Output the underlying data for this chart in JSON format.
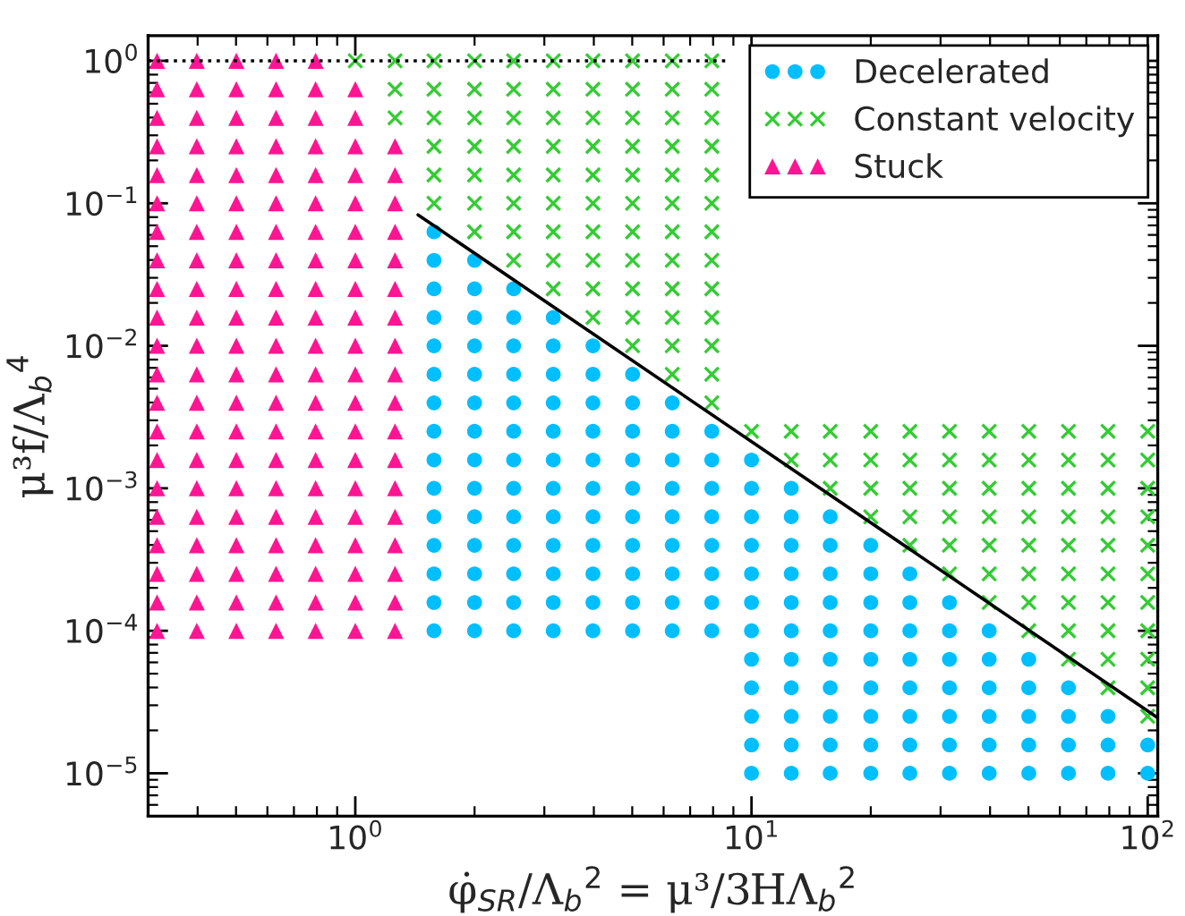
{
  "chart_data": {
    "type": "scatter",
    "xlabel": "φ̇$_{SR}$/Λ$_{b}$$^{2}$ = μ³/3HΛ$_{b}$$^{2}$",
    "ylabel": "μ³f/Λ$_{b}$$^{4}$",
    "log": "xy",
    "grid": false,
    "legend": "top right",
    "xlim": [
      0.3,
      106
    ],
    "ylim": [
      5e-06,
      1.5
    ],
    "xticks": [
      {
        "value": 1,
        "label": "10$^{0}$"
      },
      {
        "value": 10,
        "label": "10$^{1}$"
      },
      {
        "value": 100,
        "label": "10$^{2}$"
      }
    ],
    "yticks": [
      {
        "value": 1e-05,
        "label": "10$^{−5}$"
      },
      {
        "value": 0.0001,
        "label": "10$^{−4}$"
      },
      {
        "value": 0.001,
        "label": "10$^{−3}$"
      },
      {
        "value": 0.01,
        "label": "10$^{−2}$"
      },
      {
        "value": 0.1,
        "label": "10$^{−1}$"
      },
      {
        "value": 1,
        "label": "10$^{0}$"
      }
    ],
    "series": [
      {
        "name": "Decelerated",
        "marker": "circle",
        "color": "#00bfff",
        "x": [
          1.58,
          1.58,
          1.58,
          1.58,
          1.58,
          1.58,
          1.58,
          1.58,
          1.58,
          1.58,
          1.58,
          1.58,
          1.58,
          1.58,
          1.58,
          2,
          2,
          2,
          2,
          2,
          2,
          2,
          2,
          2,
          2,
          2,
          2,
          2,
          2,
          2.51,
          2.51,
          2.51,
          2.51,
          2.51,
          2.51,
          2.51,
          2.51,
          2.51,
          2.51,
          2.51,
          2.51,
          2.51,
          3.16,
          3.16,
          3.16,
          3.16,
          3.16,
          3.16,
          3.16,
          3.16,
          3.16,
          3.16,
          3.16,
          3.16,
          3.98,
          3.98,
          3.98,
          3.98,
          3.98,
          3.98,
          3.98,
          3.98,
          3.98,
          3.98,
          3.98,
          5.01,
          5.01,
          5.01,
          5.01,
          5.01,
          5.01,
          5.01,
          5.01,
          5.01,
          5.01,
          6.31,
          6.31,
          6.31,
          6.31,
          6.31,
          6.31,
          6.31,
          6.31,
          6.31,
          7.94,
          7.94,
          7.94,
          7.94,
          7.94,
          7.94,
          7.94,
          7.94,
          10,
          10,
          10,
          10,
          10,
          10,
          10,
          10,
          10,
          10,
          10,
          10,
          12.6,
          12.6,
          12.6,
          12.6,
          12.6,
          12.6,
          12.6,
          12.6,
          12.6,
          12.6,
          12.6,
          15.8,
          15.8,
          15.8,
          15.8,
          15.8,
          15.8,
          15.8,
          15.8,
          15.8,
          15.8,
          20,
          20,
          20,
          20,
          20,
          20,
          20,
          20,
          20,
          25.1,
          25.1,
          25.1,
          25.1,
          25.1,
          25.1,
          25.1,
          25.1,
          31.6,
          31.6,
          31.6,
          31.6,
          31.6,
          31.6,
          31.6,
          39.8,
          39.8,
          39.8,
          39.8,
          39.8,
          39.8,
          50.1,
          50.1,
          50.1,
          50.1,
          50.1,
          63.1,
          63.1,
          63.1,
          63.1,
          79.4,
          79.4,
          79.4,
          100,
          100
        ],
        "values": [
          0.0631,
          0.0398,
          0.0251,
          0.0158,
          0.01,
          0.00631,
          0.00398,
          0.00251,
          0.00158,
          0.001,
          0.000631,
          0.000398,
          0.000251,
          0.000158,
          0.0001,
          0.0398,
          0.0251,
          0.0158,
          0.01,
          0.00631,
          0.00398,
          0.00251,
          0.00158,
          0.001,
          0.000631,
          0.000398,
          0.000251,
          0.000158,
          0.0001,
          0.0251,
          0.0158,
          0.01,
          0.00631,
          0.00398,
          0.00251,
          0.00158,
          0.001,
          0.000631,
          0.000398,
          0.000251,
          0.000158,
          0.0001,
          0.0158,
          0.01,
          0.00631,
          0.00398,
          0.00251,
          0.00158,
          0.001,
          0.000631,
          0.000398,
          0.000251,
          0.000158,
          0.0001,
          0.01,
          0.00631,
          0.00398,
          0.00251,
          0.00158,
          0.001,
          0.000631,
          0.000398,
          0.000251,
          0.000158,
          0.0001,
          0.00631,
          0.00398,
          0.00251,
          0.00158,
          0.001,
          0.000631,
          0.000398,
          0.000251,
          0.000158,
          0.0001,
          0.00398,
          0.00251,
          0.00158,
          0.001,
          0.000631,
          0.000398,
          0.000251,
          0.000158,
          0.0001,
          0.00251,
          0.00158,
          0.001,
          0.000631,
          0.000398,
          0.000251,
          0.000158,
          0.0001,
          0.00158,
          0.001,
          0.000631,
          0.000398,
          0.000251,
          0.000158,
          0.0001,
          6.31e-05,
          3.98e-05,
          2.51e-05,
          1.58e-05,
          1e-05,
          0.001,
          0.000631,
          0.000398,
          0.000251,
          0.000158,
          0.0001,
          6.31e-05,
          3.98e-05,
          2.51e-05,
          1.58e-05,
          1e-05,
          0.000631,
          0.000398,
          0.000251,
          0.000158,
          0.0001,
          6.31e-05,
          3.98e-05,
          2.51e-05,
          1.58e-05,
          1e-05,
          0.000398,
          0.000251,
          0.000158,
          0.0001,
          6.31e-05,
          3.98e-05,
          2.51e-05,
          1.58e-05,
          1e-05,
          0.000251,
          0.000158,
          0.0001,
          6.31e-05,
          3.98e-05,
          2.51e-05,
          1.58e-05,
          1e-05,
          0.000158,
          0.0001,
          6.31e-05,
          3.98e-05,
          2.51e-05,
          1.58e-05,
          1e-05,
          0.0001,
          6.31e-05,
          3.98e-05,
          2.51e-05,
          1.58e-05,
          1e-05,
          6.31e-05,
          3.98e-05,
          2.51e-05,
          1.58e-05,
          1e-05,
          3.98e-05,
          2.51e-05,
          1.58e-05,
          1e-05,
          2.51e-05,
          1.58e-05,
          1e-05,
          1.58e-05,
          1e-05
        ]
      },
      {
        "name": "Constant velocity",
        "marker": "cross",
        "color": "#33cc33",
        "x": [
          1,
          1.26,
          1.26,
          1.26,
          1.58,
          1.58,
          1.58,
          1.58,
          1.58,
          1.58,
          2,
          2,
          2,
          2,
          2,
          2,
          2,
          2.51,
          2.51,
          2.51,
          2.51,
          2.51,
          2.51,
          2.51,
          2.51,
          3.16,
          3.16,
          3.16,
          3.16,
          3.16,
          3.16,
          3.16,
          3.16,
          3.16,
          3.98,
          3.98,
          3.98,
          3.98,
          3.98,
          3.98,
          3.98,
          3.98,
          3.98,
          3.98,
          5.01,
          5.01,
          5.01,
          5.01,
          5.01,
          5.01,
          5.01,
          5.01,
          5.01,
          5.01,
          5.01,
          6.31,
          6.31,
          6.31,
          6.31,
          6.31,
          6.31,
          6.31,
          6.31,
          6.31,
          6.31,
          6.31,
          6.31,
          7.94,
          7.94,
          7.94,
          7.94,
          7.94,
          7.94,
          7.94,
          7.94,
          7.94,
          7.94,
          7.94,
          7.94,
          7.94,
          10,
          12.6,
          12.6,
          15.8,
          15.8,
          15.8,
          20,
          20,
          20,
          20,
          25.1,
          25.1,
          25.1,
          25.1,
          25.1,
          31.6,
          31.6,
          31.6,
          31.6,
          31.6,
          31.6,
          39.8,
          39.8,
          39.8,
          39.8,
          39.8,
          39.8,
          39.8,
          50.1,
          50.1,
          50.1,
          50.1,
          50.1,
          50.1,
          50.1,
          50.1,
          63.1,
          63.1,
          63.1,
          63.1,
          63.1,
          63.1,
          63.1,
          63.1,
          63.1,
          79.4,
          79.4,
          79.4,
          79.4,
          79.4,
          79.4,
          79.4,
          79.4,
          79.4,
          79.4,
          100,
          100,
          100,
          100,
          100,
          100,
          100,
          100,
          100,
          100,
          100
        ],
        "values": [
          1,
          1,
          0.631,
          0.398,
          1,
          0.631,
          0.398,
          0.251,
          0.158,
          0.1,
          1,
          0.631,
          0.398,
          0.251,
          0.158,
          0.1,
          0.0631,
          1,
          0.631,
          0.398,
          0.251,
          0.158,
          0.1,
          0.0631,
          0.0398,
          1,
          0.631,
          0.398,
          0.251,
          0.158,
          0.1,
          0.0631,
          0.0398,
          0.0251,
          1,
          0.631,
          0.398,
          0.251,
          0.158,
          0.1,
          0.0631,
          0.0398,
          0.0251,
          0.0158,
          1,
          0.631,
          0.398,
          0.251,
          0.158,
          0.1,
          0.0631,
          0.0398,
          0.0251,
          0.0158,
          0.01,
          1,
          0.631,
          0.398,
          0.251,
          0.158,
          0.1,
          0.0631,
          0.0398,
          0.0251,
          0.0158,
          0.01,
          0.00631,
          1,
          0.631,
          0.398,
          0.251,
          0.158,
          0.1,
          0.0631,
          0.0398,
          0.0251,
          0.0158,
          0.01,
          0.00631,
          0.00398,
          0.00251,
          0.00251,
          0.00158,
          0.00251,
          0.00158,
          0.001,
          0.00251,
          0.00158,
          0.001,
          0.000631,
          0.00251,
          0.00158,
          0.001,
          0.000631,
          0.000398,
          0.00251,
          0.00158,
          0.001,
          0.000631,
          0.000398,
          0.000251,
          0.00251,
          0.00158,
          0.001,
          0.000631,
          0.000398,
          0.000251,
          0.000158,
          0.00251,
          0.00158,
          0.001,
          0.000631,
          0.000398,
          0.000251,
          0.000158,
          0.0001,
          0.00251,
          0.00158,
          0.001,
          0.000631,
          0.000398,
          0.000251,
          0.000158,
          0.0001,
          6.31e-05,
          0.00251,
          0.00158,
          0.001,
          0.000631,
          0.000398,
          0.000251,
          0.000158,
          0.0001,
          6.31e-05,
          3.98e-05,
          0.00251,
          0.00158,
          0.001,
          0.000631,
          0.000398,
          0.000251,
          0.000158,
          0.0001,
          6.31e-05,
          3.98e-05,
          2.51e-05
        ]
      },
      {
        "name": "Stuck",
        "marker": "triangle",
        "color": "#ff1493",
        "x": [
          0.316,
          0.316,
          0.316,
          0.316,
          0.316,
          0.316,
          0.316,
          0.316,
          0.316,
          0.316,
          0.316,
          0.316,
          0.316,
          0.316,
          0.316,
          0.316,
          0.316,
          0.316,
          0.316,
          0.316,
          0.316,
          0.398,
          0.398,
          0.398,
          0.398,
          0.398,
          0.398,
          0.398,
          0.398,
          0.398,
          0.398,
          0.398,
          0.398,
          0.398,
          0.398,
          0.398,
          0.398,
          0.398,
          0.398,
          0.398,
          0.398,
          0.398,
          0.501,
          0.501,
          0.501,
          0.501,
          0.501,
          0.501,
          0.501,
          0.501,
          0.501,
          0.501,
          0.501,
          0.501,
          0.501,
          0.501,
          0.501,
          0.501,
          0.501,
          0.501,
          0.501,
          0.501,
          0.501,
          0.631,
          0.631,
          0.631,
          0.631,
          0.631,
          0.631,
          0.631,
          0.631,
          0.631,
          0.631,
          0.631,
          0.631,
          0.631,
          0.631,
          0.631,
          0.631,
          0.631,
          0.631,
          0.631,
          0.631,
          0.631,
          0.794,
          0.794,
          0.794,
          0.794,
          0.794,
          0.794,
          0.794,
          0.794,
          0.794,
          0.794,
          0.794,
          0.794,
          0.794,
          0.794,
          0.794,
          0.794,
          0.794,
          0.794,
          0.794,
          0.794,
          0.794,
          1,
          1,
          1,
          1,
          1,
          1,
          1,
          1,
          1,
          1,
          1,
          1,
          1,
          1,
          1,
          1,
          1,
          1,
          1,
          1,
          1.26,
          1.26,
          1.26,
          1.26,
          1.26,
          1.26,
          1.26,
          1.26,
          1.26,
          1.26,
          1.26,
          1.26,
          1.26,
          1.26,
          1.26,
          1.26,
          1.26,
          1.26
        ],
        "values": [
          1,
          0.631,
          0.398,
          0.251,
          0.158,
          0.1,
          0.0631,
          0.0398,
          0.0251,
          0.0158,
          0.01,
          0.00631,
          0.00398,
          0.00251,
          0.00158,
          0.001,
          0.000631,
          0.000398,
          0.000251,
          0.000158,
          0.0001,
          1,
          0.631,
          0.398,
          0.251,
          0.158,
          0.1,
          0.0631,
          0.0398,
          0.0251,
          0.0158,
          0.01,
          0.00631,
          0.00398,
          0.00251,
          0.00158,
          0.001,
          0.000631,
          0.000398,
          0.000251,
          0.000158,
          0.0001,
          1,
          0.631,
          0.398,
          0.251,
          0.158,
          0.1,
          0.0631,
          0.0398,
          0.0251,
          0.0158,
          0.01,
          0.00631,
          0.00398,
          0.00251,
          0.00158,
          0.001,
          0.000631,
          0.000398,
          0.000251,
          0.000158,
          0.0001,
          1,
          0.631,
          0.398,
          0.251,
          0.158,
          0.1,
          0.0631,
          0.0398,
          0.0251,
          0.0158,
          0.01,
          0.00631,
          0.00398,
          0.00251,
          0.00158,
          0.001,
          0.000631,
          0.000398,
          0.000251,
          0.000158,
          0.0001,
          1,
          0.631,
          0.398,
          0.251,
          0.158,
          0.1,
          0.0631,
          0.0398,
          0.0251,
          0.0158,
          0.01,
          0.00631,
          0.00398,
          0.00251,
          0.00158,
          0.001,
          0.000631,
          0.000398,
          0.000251,
          0.000158,
          0.0001,
          0.631,
          0.398,
          0.251,
          0.158,
          0.1,
          0.0631,
          0.0398,
          0.0251,
          0.0158,
          0.01,
          0.00631,
          0.00398,
          0.00251,
          0.00158,
          0.001,
          0.000631,
          0.000398,
          0.000251,
          0.000158,
          0.0001,
          0.251,
          0.158,
          0.1,
          0.0631,
          0.0398,
          0.0251,
          0.0158,
          0.01,
          0.00631,
          0.00398,
          0.00251,
          0.00158,
          0.001,
          0.000631,
          0.000398,
          0.000251,
          0.000158,
          0.0001
        ]
      },
      {
        "type": "line",
        "color": "#000000",
        "line_style": "dotted",
        "x": [
          0.3,
          8.6
        ],
        "values": [
          1,
          1
        ]
      },
      {
        "type": "line",
        "color": "#000000",
        "line_style": "solid",
        "x": [
          1.44,
          106
        ],
        "values": [
          0.083,
          2.45e-05
        ]
      }
    ]
  }
}
